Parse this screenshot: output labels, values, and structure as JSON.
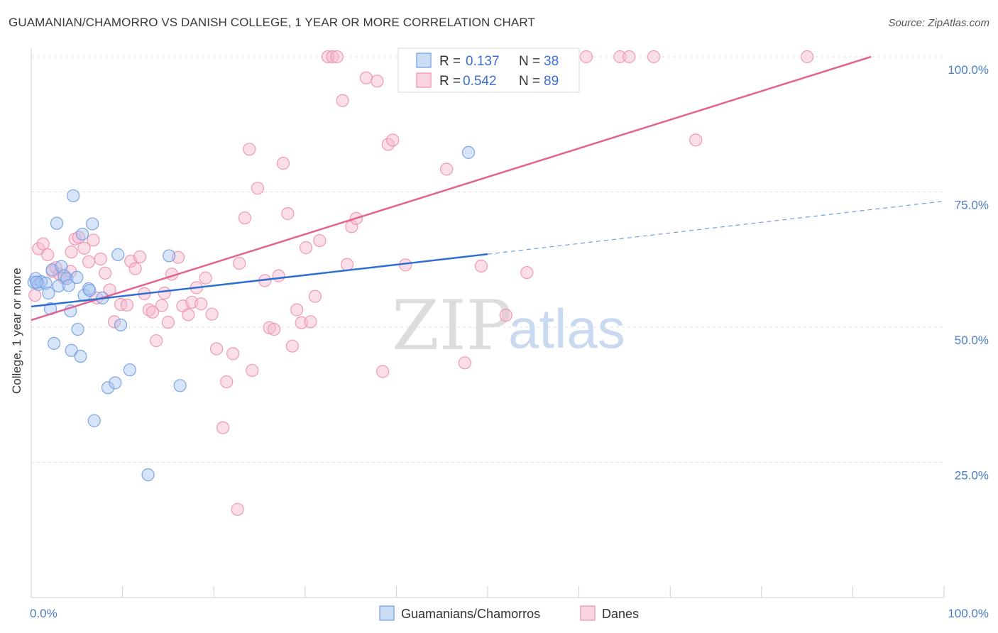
{
  "header": {
    "title": "GUAMANIAN/CHAMORRO VS DANISH COLLEGE, 1 YEAR OR MORE CORRELATION CHART",
    "source": "Source: ZipAtlas.com"
  },
  "watermark": {
    "zip": "ZIP",
    "atlas": "atlas"
  },
  "legend": {
    "rows": [
      {
        "r_label": "R = ",
        "r_value": "0.137",
        "n_label": "N = ",
        "n_value": "38",
        "color": "#a9c4ef"
      },
      {
        "r_label": "R = ",
        "r_value": "0.542",
        "n_label": "N = ",
        "n_value": "89",
        "color": "#f6b8cc"
      }
    ]
  },
  "chart_data": {
    "type": "scatter",
    "title": "GUAMANIAN/CHAMORRO VS DANISH COLLEGE, 1 YEAR OR MORE CORRELATION CHART",
    "xlabel": "",
    "ylabel": "College, 1 year or more",
    "xlim": [
      0,
      100
    ],
    "ylim": [
      0,
      100
    ],
    "x_tick_labels": [
      {
        "value": 0,
        "label": "0.0%"
      },
      {
        "value": 100,
        "label": "100.0%"
      }
    ],
    "y_tick_labels": [
      {
        "value": 100,
        "label": "100.0%"
      },
      {
        "value": 75,
        "label": "75.0%"
      },
      {
        "value": 50,
        "label": "50.0%"
      },
      {
        "value": 25,
        "label": "25.0%"
      }
    ],
    "grid": true,
    "legend_position": "bottom",
    "series": [
      {
        "name": "Guamanians/Chamorros",
        "color": "#6f9de3",
        "fill": "#a9c4ef",
        "r": 0.137,
        "n": 38,
        "trend": {
          "x0": 0,
          "y0": 53.8,
          "x1": 50,
          "y1": 63.5,
          "dash_to_x": 100,
          "dash_to_y": 73.3
        },
        "points": [
          [
            0.3,
            58.3
          ],
          [
            0.5,
            59.0
          ],
          [
            0.8,
            57.9
          ],
          [
            1.1,
            58.4
          ],
          [
            1.6,
            58.1
          ],
          [
            1.9,
            56.3
          ],
          [
            2.1,
            53.4
          ],
          [
            2.3,
            60.6
          ],
          [
            2.5,
            47.0
          ],
          [
            2.8,
            69.2
          ],
          [
            3.0,
            57.6
          ],
          [
            3.3,
            61.2
          ],
          [
            3.6,
            59.5
          ],
          [
            3.9,
            59.0
          ],
          [
            4.1,
            57.7
          ],
          [
            4.3,
            53.0
          ],
          [
            4.4,
            45.7
          ],
          [
            4.6,
            74.3
          ],
          [
            5.0,
            59.2
          ],
          [
            5.1,
            49.6
          ],
          [
            5.4,
            44.6
          ],
          [
            5.6,
            67.2
          ],
          [
            5.8,
            55.9
          ],
          [
            6.3,
            57.1
          ],
          [
            6.4,
            56.8
          ],
          [
            6.7,
            69.1
          ],
          [
            6.9,
            32.7
          ],
          [
            7.8,
            55.4
          ],
          [
            8.4,
            38.8
          ],
          [
            9.2,
            39.7
          ],
          [
            9.5,
            63.4
          ],
          [
            9.8,
            50.4
          ],
          [
            10.8,
            42.1
          ],
          [
            12.8,
            22.7
          ],
          [
            15.1,
            63.2
          ],
          [
            16.3,
            39.2
          ],
          [
            47.9,
            82.3
          ],
          [
            0.6,
            58.3
          ]
        ]
      },
      {
        "name": "Danes",
        "color": "#ee8fae",
        "fill": "#f6b8cc",
        "r": 0.542,
        "n": 89,
        "trend": {
          "x0": 0,
          "y0": 51.3,
          "x1": 92,
          "y1": 100
        },
        "points": [
          [
            0.4,
            55.9
          ],
          [
            0.8,
            64.5
          ],
          [
            1.3,
            65.4
          ],
          [
            1.8,
            63.4
          ],
          [
            2.3,
            60.3
          ],
          [
            2.7,
            61.0
          ],
          [
            3.1,
            59.8
          ],
          [
            3.6,
            59.1
          ],
          [
            4.3,
            60.3
          ],
          [
            4.4,
            63.9
          ],
          [
            4.8,
            66.3
          ],
          [
            5.2,
            66.6
          ],
          [
            5.8,
            64.6
          ],
          [
            6.3,
            62.1
          ],
          [
            6.8,
            66.1
          ],
          [
            7.2,
            55.4
          ],
          [
            7.6,
            62.6
          ],
          [
            8.1,
            60.0
          ],
          [
            8.6,
            56.9
          ],
          [
            9.1,
            51.0
          ],
          [
            9.8,
            54.2
          ],
          [
            10.5,
            54.1
          ],
          [
            10.9,
            62.2
          ],
          [
            11.4,
            60.8
          ],
          [
            11.9,
            63.0
          ],
          [
            12.4,
            56.2
          ],
          [
            12.9,
            53.2
          ],
          [
            13.3,
            52.8
          ],
          [
            13.7,
            47.5
          ],
          [
            14.3,
            54.0
          ],
          [
            14.6,
            56.3
          ],
          [
            15.0,
            50.9
          ],
          [
            15.4,
            59.8
          ],
          [
            16.1,
            62.9
          ],
          [
            16.6,
            53.9
          ],
          [
            17.2,
            52.3
          ],
          [
            17.6,
            54.6
          ],
          [
            18.1,
            57.3
          ],
          [
            18.6,
            54.3
          ],
          [
            19.1,
            59.1
          ],
          [
            19.8,
            52.4
          ],
          [
            20.3,
            46.0
          ],
          [
            21.0,
            31.4
          ],
          [
            21.4,
            39.9
          ],
          [
            22.1,
            45.1
          ],
          [
            22.6,
            16.3
          ],
          [
            22.8,
            61.8
          ],
          [
            23.4,
            70.2
          ],
          [
            23.9,
            82.9
          ],
          [
            24.2,
            42.0
          ],
          [
            24.8,
            75.7
          ],
          [
            25.6,
            58.6
          ],
          [
            26.1,
            49.9
          ],
          [
            26.6,
            49.6
          ],
          [
            27.1,
            59.5
          ],
          [
            27.6,
            80.3
          ],
          [
            28.1,
            71.0
          ],
          [
            28.6,
            46.5
          ],
          [
            29.1,
            53.2
          ],
          [
            29.6,
            50.8
          ],
          [
            30.1,
            64.7
          ],
          [
            30.6,
            51.0
          ],
          [
            31.1,
            55.7
          ],
          [
            31.6,
            66.0
          ],
          [
            32.5,
            100.0
          ],
          [
            33.0,
            100.0
          ],
          [
            33.5,
            100.0
          ],
          [
            34.1,
            91.9
          ],
          [
            34.6,
            61.6
          ],
          [
            35.1,
            68.6
          ],
          [
            35.6,
            70.1
          ],
          [
            36.7,
            96.1
          ],
          [
            37.9,
            95.5
          ],
          [
            38.5,
            41.8
          ],
          [
            39.1,
            83.8
          ],
          [
            39.6,
            84.6
          ],
          [
            41.0,
            61.5
          ],
          [
            45.5,
            79.2
          ],
          [
            47.5,
            43.4
          ],
          [
            49.3,
            61.3
          ],
          [
            52.0,
            52.2
          ],
          [
            54.3,
            60.1
          ],
          [
            58.5,
            100.0
          ],
          [
            60.8,
            100.0
          ],
          [
            64.5,
            100.0
          ],
          [
            65.5,
            100.0
          ],
          [
            68.2,
            100.0
          ],
          [
            72.8,
            84.6
          ],
          [
            85.0,
            100.0
          ]
        ]
      }
    ]
  }
}
